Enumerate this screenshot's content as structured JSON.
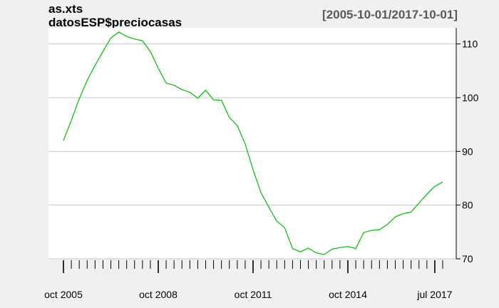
{
  "chart_data": {
    "type": "line",
    "title_line1": "as.xts",
    "title_line2": "datosESP$preciocasas",
    "date_range": "[2005-10-01/2017-10-01]",
    "xlabel": "",
    "ylabel": "",
    "ylim": [
      70,
      113
    ],
    "y_ticks": [
      70,
      80,
      90,
      100,
      110
    ],
    "x_tick_labels": [
      "oct 2005",
      "oct 2008",
      "oct 2011",
      "oct 2014",
      "jul 2017"
    ],
    "grid": true,
    "y_axis_side": "right",
    "series_color": "#00bb00",
    "series": [
      {
        "x": [
          "2005-10",
          "2006-01",
          "2006-04",
          "2006-07",
          "2006-10",
          "2007-01",
          "2007-04",
          "2007-07",
          "2007-10",
          "2008-01",
          "2008-04",
          "2008-07",
          "2008-10",
          "2009-01",
          "2009-04",
          "2009-07",
          "2009-10",
          "2010-01",
          "2010-04",
          "2010-07",
          "2010-10",
          "2011-01",
          "2011-04",
          "2011-07",
          "2011-10",
          "2012-01",
          "2012-04",
          "2012-07",
          "2012-10",
          "2013-01",
          "2013-04",
          "2013-07",
          "2013-10",
          "2014-01",
          "2014-04",
          "2014-07",
          "2014-10",
          "2015-01",
          "2015-04",
          "2015-07",
          "2015-10",
          "2016-01",
          "2016-04",
          "2016-07",
          "2016-10",
          "2017-01",
          "2017-04",
          "2017-07",
          "2017-10"
        ],
        "values": [
          92.0,
          95.8,
          99.8,
          103.2,
          106.0,
          108.6,
          111.1,
          112.2,
          111.4,
          110.9,
          110.6,
          108.6,
          105.5,
          102.7,
          102.3,
          101.5,
          101.0,
          99.9,
          101.4,
          99.6,
          99.5,
          96.3,
          94.8,
          91.4,
          86.6,
          82.3,
          79.6,
          77.0,
          75.8,
          71.9,
          71.3,
          72.0,
          71.1,
          70.8,
          71.8,
          72.1,
          72.3,
          71.9,
          74.9,
          75.3,
          75.4,
          76.4,
          77.8,
          78.4,
          78.7,
          80.4,
          82.0,
          83.5,
          84.3
        ]
      }
    ]
  }
}
